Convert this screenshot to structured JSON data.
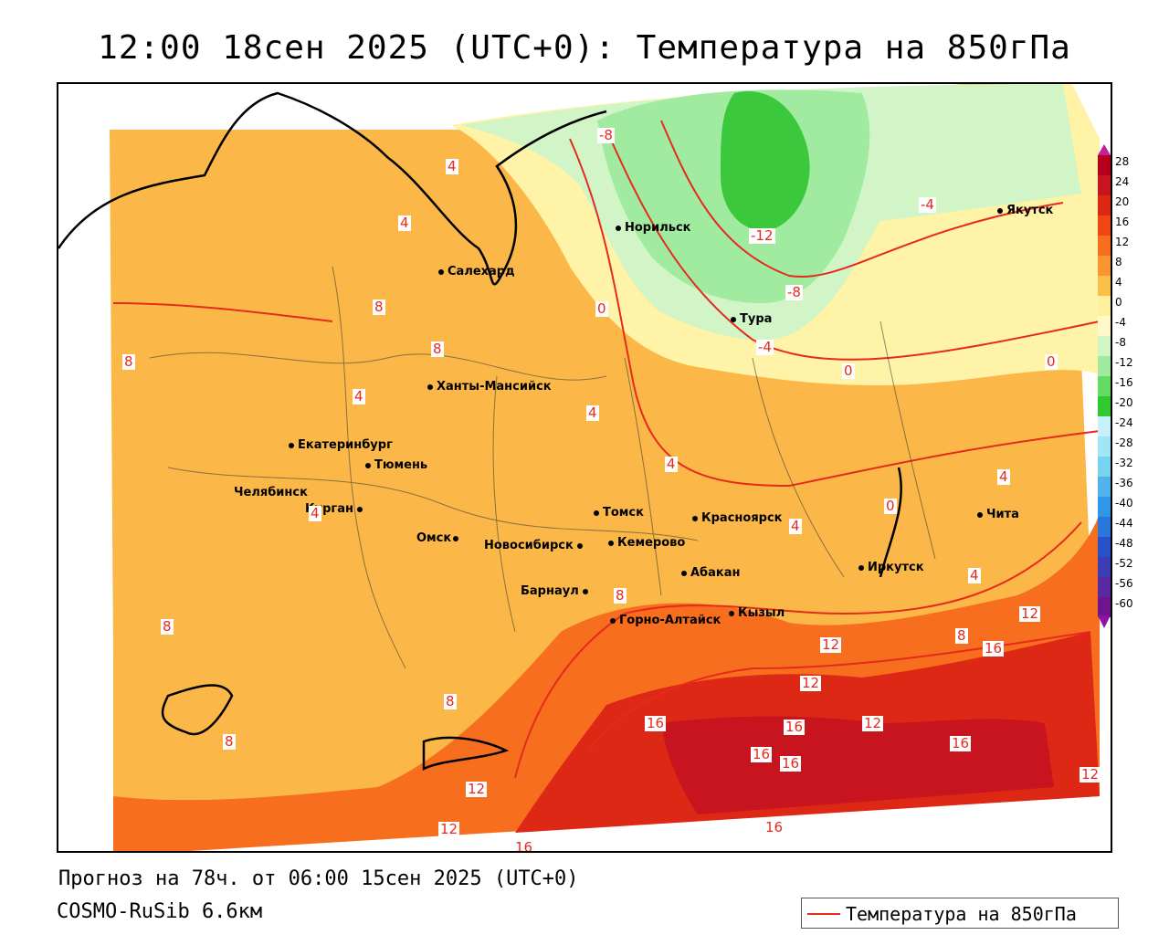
{
  "title": "12:00 18сен 2025 (UTC+0): Температура на 850гПа",
  "footer": {
    "forecast": "Прогноз на 78ч. от 06:00 15сен 2025 (UTC+0)",
    "model": "COSMO-RuSib 6.6км"
  },
  "legend": {
    "label": "Температура на 850гПа",
    "color": "#e62a1e"
  },
  "cities": [
    {
      "name": "Норильск"
    },
    {
      "name": "Якутск"
    },
    {
      "name": "Салехард"
    },
    {
      "name": "Тура"
    },
    {
      "name": "Ханты-Мансийск"
    },
    {
      "name": "Екатеринбург"
    },
    {
      "name": "Тюмень"
    },
    {
      "name": "Челябинск"
    },
    {
      "name": "Курган"
    },
    {
      "name": "Омск"
    },
    {
      "name": "Новосибирск"
    },
    {
      "name": "Томск"
    },
    {
      "name": "Кемерово"
    },
    {
      "name": "Красноярск"
    },
    {
      "name": "Барнаул"
    },
    {
      "name": "Абакан"
    },
    {
      "name": "Горно-Алтайск"
    },
    {
      "name": "Кызыл"
    },
    {
      "name": "Иркутск"
    },
    {
      "name": "Чита"
    }
  ],
  "contour_labels": [
    "-12",
    "-8",
    "-8",
    "-4",
    "-4",
    "4",
    "4",
    "0",
    "0",
    "0",
    "0",
    "8",
    "8",
    "8",
    "4",
    "4",
    "4",
    "4",
    "4",
    "4",
    "4",
    "8",
    "8",
    "8",
    "8",
    "12",
    "12",
    "12",
    "16",
    "16",
    "16",
    "16",
    "16",
    "12",
    "16",
    "12",
    "12",
    "12",
    "16",
    "8",
    "16"
  ],
  "colorbar": {
    "labels": [
      "28",
      "24",
      "20",
      "16",
      "12",
      "8",
      "4",
      "0",
      "-4",
      "-8",
      "-12",
      "-16",
      "-20",
      "-24",
      "-28",
      "-32",
      "-36",
      "-40",
      "-44",
      "-48",
      "-52",
      "-56",
      "-60"
    ],
    "colors": [
      "#b4001e",
      "#c8141e",
      "#dc2814",
      "#f04614",
      "#f66e1e",
      "#fa9632",
      "#fbc04a",
      "#fff0a0",
      "#fff8c8",
      "#d2f5c8",
      "#a0eba0",
      "#64dc64",
      "#32c832",
      "#c8f0fa",
      "#a0e6f5",
      "#78d2f0",
      "#50b4eb",
      "#3296e6",
      "#2878dc",
      "#2850c8",
      "#3c3cb4",
      "#5a28a0",
      "#6e148c"
    ]
  }
}
